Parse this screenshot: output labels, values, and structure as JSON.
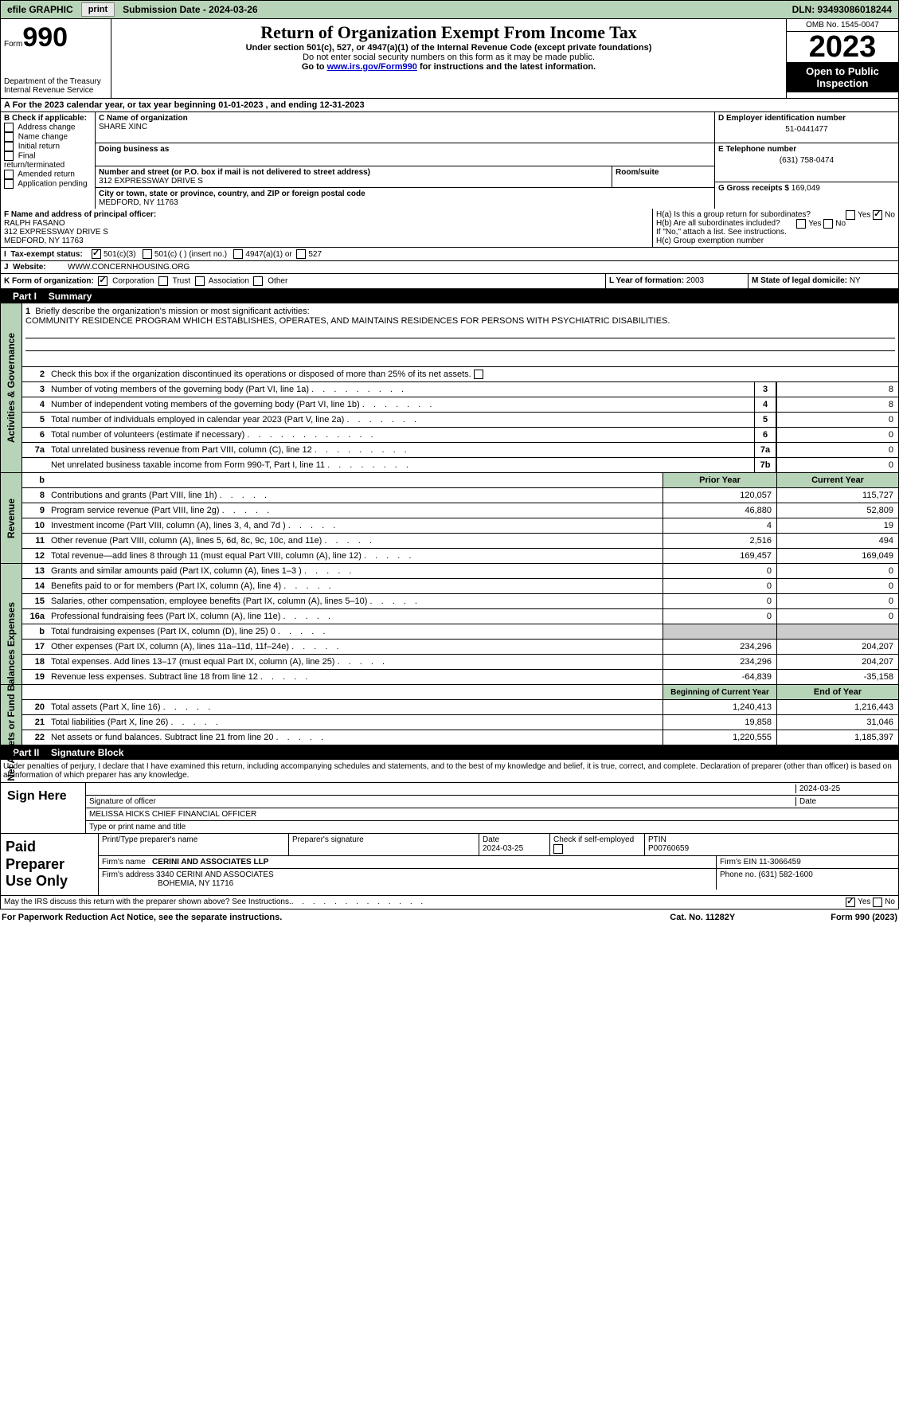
{
  "topbar": {
    "efile": "efile GRAPHIC",
    "print": "print",
    "submission": "Submission Date - 2024-03-26",
    "dln": "DLN: 93493086018244"
  },
  "header": {
    "form_label": "Form",
    "form_num": "990",
    "dept": "Department of the Treasury",
    "irs": "Internal Revenue Service",
    "title": "Return of Organization Exempt From Income Tax",
    "subtitle": "Under section 501(c), 527, or 4947(a)(1) of the Internal Revenue Code (except private foundations)",
    "warn": "Do not enter social security numbers on this form as it may be made public.",
    "goto": "Go to ",
    "goto_link": "www.irs.gov/Form990",
    "goto_tail": " for instructions and the latest information.",
    "omb": "OMB No. 1545-0047",
    "year": "2023",
    "inspect": "Open to Public Inspection"
  },
  "period": "For the 2023 calendar year, or tax year beginning 01-01-2023    , and ending 12-31-2023",
  "sectionB": {
    "label": "B Check if applicable:",
    "items": [
      "Address change",
      "Name change",
      "Initial return",
      "Final return/terminated",
      "Amended return",
      "Application pending"
    ]
  },
  "sectionC": {
    "name_label": "C Name of organization",
    "name": "SHARE XINC",
    "dba_label": "Doing business as",
    "street_label": "Number and street (or P.O. box if mail is not delivered to street address)",
    "street": "312 EXPRESSWAY DRIVE S",
    "room_label": "Room/suite",
    "city_label": "City or town, state or province, country, and ZIP or foreign postal code",
    "city": "MEDFORD, NY  11763"
  },
  "sectionD": {
    "label": "D Employer identification number",
    "ein": "51-0441477",
    "tel_label": "E Telephone number",
    "tel": "(631) 758-0474",
    "gross_label": "G Gross receipts $ ",
    "gross": "169,049"
  },
  "sectionF": {
    "label": "F  Name and address of principal officer:",
    "name": "RALPH FASANO",
    "street": "312 EXPRESSWAY DRIVE S",
    "city": "MEDFORD, NY  11763"
  },
  "sectionH": {
    "a": "H(a)  Is this a group return for subordinates?",
    "b": "H(b)  Are all subordinates included?",
    "b_note": "If \"No,\" attach a list. See instructions.",
    "c": "H(c)  Group exemption number ",
    "yes": "Yes",
    "no": "No"
  },
  "taxStatus": {
    "label": "Tax-exempt status:",
    "c3": "501(c)(3)",
    "c": "501(c) (  ) (insert no.)",
    "a1": "4947(a)(1) or",
    "s527": "527"
  },
  "website": {
    "label": "Website: ",
    "value": "WWW.CONCERNHOUSING.ORG"
  },
  "rowK": {
    "label": "K Form of organization:",
    "corp": "Corporation",
    "trust": "Trust",
    "assoc": "Association",
    "other": "Other",
    "year_label": "L Year of formation: ",
    "year": "2003",
    "state_label": "M State of legal domicile: ",
    "state": "NY"
  },
  "part1": {
    "label": "Part I",
    "title": "Summary"
  },
  "summary": {
    "line1_label": "Briefly describe the organization's mission or most significant activities:",
    "mission": "COMMUNITY RESIDENCE PROGRAM WHICH ESTABLISHES, OPERATES, AND MAINTAINS RESIDENCES FOR PERSONS WITH PSYCHIATRIC DISABILITIES.",
    "line2": "Check this box       if the organization discontinued its operations or disposed of more than 25% of its net assets.",
    "line3": "Number of voting members of the governing body (Part VI, line 1a)",
    "line4": "Number of independent voting members of the governing body (Part VI, line 1b)",
    "line5": "Total number of individuals employed in calendar year 2023 (Part V, line 2a)",
    "line6": "Total number of volunteers (estimate if necessary)",
    "line7a": "Total unrelated business revenue from Part VIII, column (C), line 12",
    "line7b": "Net unrelated business taxable income from Form 990-T, Part I, line 11",
    "v3": "8",
    "v4": "8",
    "v5": "0",
    "v6": "0",
    "v7a": "0",
    "v7b": "0"
  },
  "revenue": {
    "prior_header": "Prior Year",
    "current_header": "Current Year",
    "lines": [
      {
        "n": "8",
        "t": "Contributions and grants (Part VIII, line 1h)",
        "p": "120,057",
        "c": "115,727"
      },
      {
        "n": "9",
        "t": "Program service revenue (Part VIII, line 2g)",
        "p": "46,880",
        "c": "52,809"
      },
      {
        "n": "10",
        "t": "Investment income (Part VIII, column (A), lines 3, 4, and 7d )",
        "p": "4",
        "c": "19"
      },
      {
        "n": "11",
        "t": "Other revenue (Part VIII, column (A), lines 5, 6d, 8c, 9c, 10c, and 11e)",
        "p": "2,516",
        "c": "494"
      },
      {
        "n": "12",
        "t": "Total revenue—add lines 8 through 11 (must equal Part VIII, column (A), line 12)",
        "p": "169,457",
        "c": "169,049"
      }
    ]
  },
  "expenses": {
    "lines": [
      {
        "n": "13",
        "t": "Grants and similar amounts paid (Part IX, column (A), lines 1–3 )",
        "p": "0",
        "c": "0"
      },
      {
        "n": "14",
        "t": "Benefits paid to or for members (Part IX, column (A), line 4)",
        "p": "0",
        "c": "0"
      },
      {
        "n": "15",
        "t": "Salaries, other compensation, employee benefits (Part IX, column (A), lines 5–10)",
        "p": "0",
        "c": "0"
      },
      {
        "n": "16a",
        "t": "Professional fundraising fees (Part IX, column (A), line 11e)",
        "p": "0",
        "c": "0"
      },
      {
        "n": "b",
        "t": "Total fundraising expenses (Part IX, column (D), line 25) 0",
        "p": "",
        "c": "",
        "shaded": true
      },
      {
        "n": "17",
        "t": "Other expenses (Part IX, column (A), lines 11a–11d, 11f–24e)",
        "p": "234,296",
        "c": "204,207"
      },
      {
        "n": "18",
        "t": "Total expenses. Add lines 13–17 (must equal Part IX, column (A), line 25)",
        "p": "234,296",
        "c": "204,207"
      },
      {
        "n": "19",
        "t": "Revenue less expenses. Subtract line 18 from line 12",
        "p": "-64,839",
        "c": "-35,158"
      }
    ]
  },
  "netassets": {
    "begin_header": "Beginning of Current Year",
    "end_header": "End of Year",
    "lines": [
      {
        "n": "20",
        "t": "Total assets (Part X, line 16)",
        "p": "1,240,413",
        "c": "1,216,443"
      },
      {
        "n": "21",
        "t": "Total liabilities (Part X, line 26)",
        "p": "19,858",
        "c": "31,046"
      },
      {
        "n": "22",
        "t": "Net assets or fund balances. Subtract line 21 from line 20",
        "p": "1,220,555",
        "c": "1,185,397"
      }
    ]
  },
  "sideLabels": {
    "gov": "Activities & Governance",
    "rev": "Revenue",
    "exp": "Expenses",
    "net": "Net Assets or Fund Balances"
  },
  "part2": {
    "label": "Part II",
    "title": "Signature Block"
  },
  "perjury": "Under penalties of perjury, I declare that I have examined this return, including accompanying schedules and statements, and to the best of my knowledge and belief, it is true, correct, and complete. Declaration of preparer (other than officer) is based on all information of which preparer has any knowledge.",
  "sign": {
    "here": "Sign Here",
    "sig_label": "Signature of officer",
    "date": "2024-03-25",
    "date_label": "Date",
    "officer": "MELISSA HICKS  CHIEF FINANCIAL OFFICER",
    "type_label": "Type or print name and title"
  },
  "preparer": {
    "label": "Paid Preparer Use Only",
    "print_label": "Print/Type preparer's name",
    "sig_label": "Preparer's signature",
    "date_label": "Date",
    "date": "2024-03-25",
    "check_label": "Check         if self-employed",
    "ptin_label": "PTIN",
    "ptin": "P00760659",
    "firm_label": "Firm's name    ",
    "firm": "CERINI AND ASSOCIATES LLP",
    "ein_label": "Firm's EIN  ",
    "ein": "11-3066459",
    "addr_label": "Firm's address ",
    "addr": "3340 CERINI AND ASSOCIATES",
    "addr2": "BOHEMIA, NY  11716",
    "phone_label": "Phone no. ",
    "phone": "(631) 582-1600"
  },
  "discuss": "May the IRS discuss this return with the preparer shown above? See Instructions.",
  "footer": {
    "pra": "For Paperwork Reduction Act Notice, see the separate instructions.",
    "cat": "Cat. No. 11282Y",
    "form": "Form 990 (2023)"
  }
}
